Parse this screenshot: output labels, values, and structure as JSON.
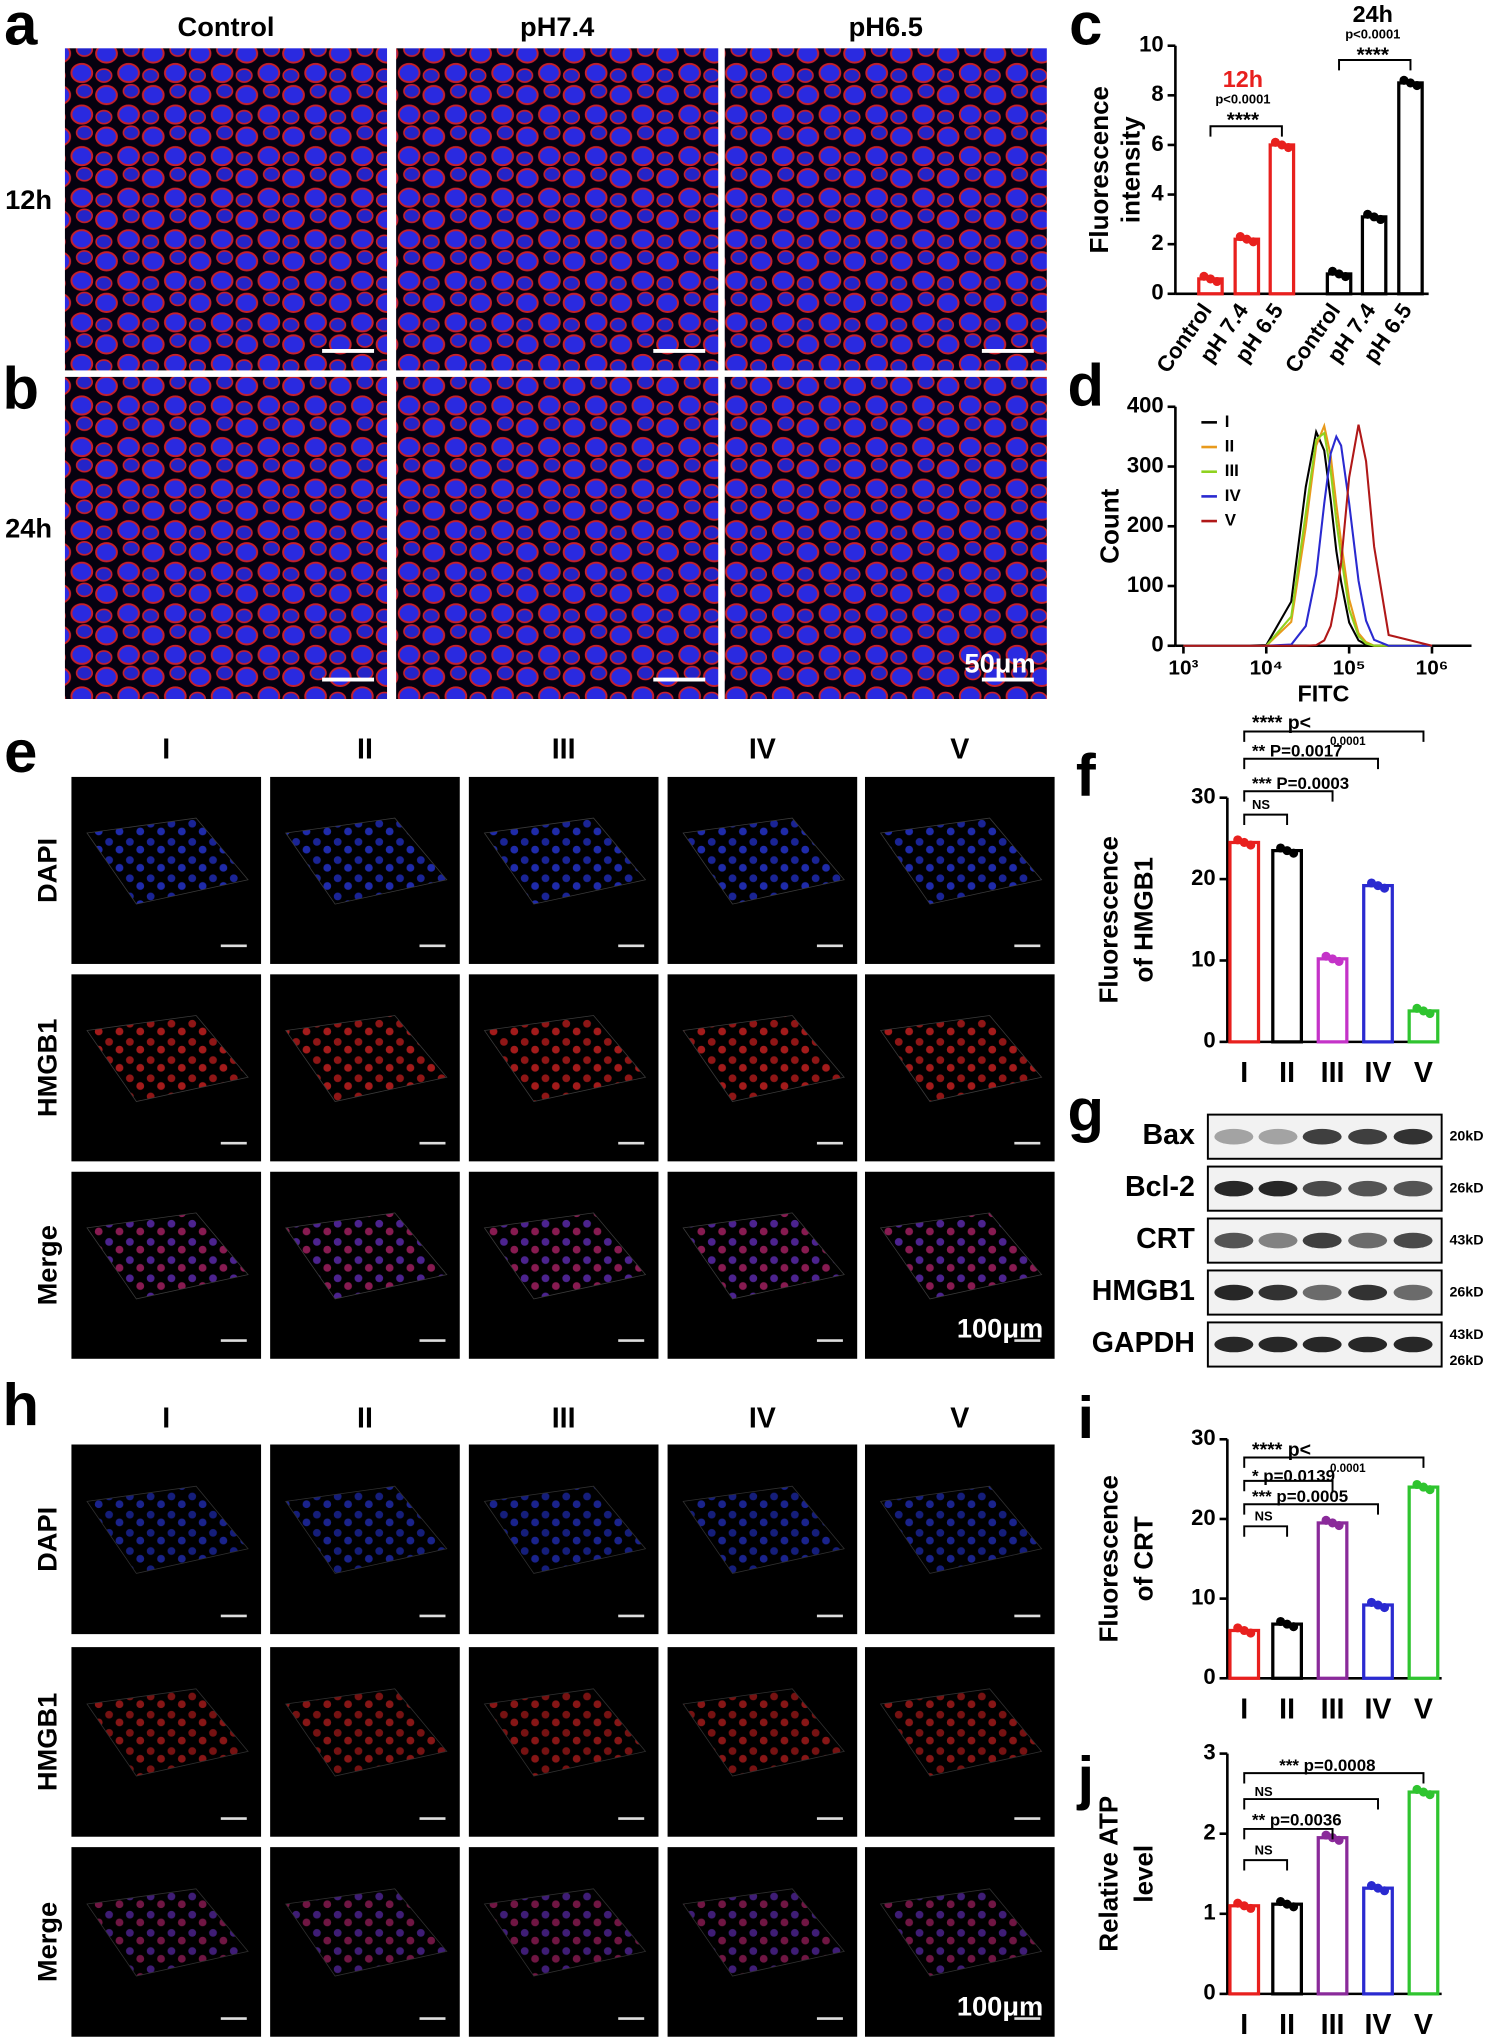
{
  "panels": {
    "letters": [
      "a",
      "b",
      "c",
      "d",
      "e",
      "f",
      "g",
      "h",
      "i",
      "j"
    ],
    "a_columns": [
      "Control",
      "pH7.4",
      "pH6.5"
    ],
    "a_rows": [
      "12h",
      "24h"
    ],
    "a_scale": "50μm",
    "e_columns": [
      "I",
      "II",
      "III",
      "IV",
      "V"
    ],
    "e_rows": [
      "DAPI",
      "HMGB1",
      "Merge"
    ],
    "e_scale": "100μm",
    "h_columns": [
      "I",
      "II",
      "III",
      "IV",
      "V"
    ],
    "h_rows": [
      "DAPI",
      "HMGB1",
      "Merge"
    ],
    "h_scale": "100μm",
    "g_proteins": [
      "Bax",
      "Bcl-2",
      "CRT",
      "HMGB1",
      "GAPDH"
    ],
    "g_sizes": [
      "20kD",
      "26kD",
      "43kD",
      "26kD",
      "43kD",
      "26kD"
    ]
  },
  "chart_data": [
    {
      "type": "bar",
      "categories": [
        "Control",
        "pH 7.4",
        "pH 6.5",
        "Control",
        "pH 7.4",
        "pH 6.5"
      ],
      "values": [
        0.6,
        2.2,
        6.0,
        0.8,
        3.1,
        8.5
      ],
      "colors": [
        "#e8201e",
        "#e8201e",
        "#e8201e",
        "#000000",
        "#000000",
        "#000000"
      ],
      "ylabel": [
        "Fluorescence",
        "intensity"
      ],
      "ylim": [
        0,
        10
      ],
      "yticks": [
        0,
        2,
        4,
        6,
        8,
        10
      ],
      "annotations": [
        {
          "text": "12h",
          "color": "#e8201e"
        },
        {
          "text": "p<0.0001",
          "color": "#000000"
        },
        {
          "text": "****",
          "color": "#000000"
        },
        {
          "text": "24h",
          "color": "#000000"
        },
        {
          "text": "p<0.0001",
          "color": "#000000"
        },
        {
          "text": "****",
          "color": "#000000"
        }
      ]
    },
    {
      "type": "line",
      "xscale": "log",
      "x": [
        1000,
        5000,
        10000,
        20000,
        30000,
        40000,
        50000,
        60000,
        70000,
        80000,
        100000,
        130000,
        160000,
        200000,
        300000,
        1000000
      ],
      "series": [
        {
          "name": "I",
          "color": "#000000",
          "values": [
            0,
            0,
            1,
            74,
            266,
            358,
            327,
            243,
            159,
            107,
            39,
            9,
            2,
            0,
            0,
            0
          ]
        },
        {
          "name": "II",
          "color": "#e89a1c",
          "values": [
            0,
            0,
            0,
            40,
            199,
            335,
            368,
            318,
            237,
            174,
            78,
            21,
            6,
            0,
            0,
            0
          ]
        },
        {
          "name": "III",
          "color": "#8fd21f",
          "values": [
            0,
            0,
            0,
            49,
            222,
            345,
            356,
            292,
            209,
            150,
            61,
            16,
            4,
            0,
            0,
            0
          ]
        },
        {
          "name": "IV",
          "color": "#2a2ad0",
          "values": [
            0,
            0,
            0,
            2,
            33,
            119,
            238,
            322,
            350,
            335,
            238,
            109,
            42,
            10,
            0,
            0
          ]
        },
        {
          "name": "V",
          "color": "#b01818",
          "values": [
            0,
            0,
            0,
            0,
            0,
            1,
            9,
            33,
            82,
            139,
            282,
            370,
            309,
            166,
            18,
            0
          ]
        }
      ],
      "xlabel": "FITC",
      "ylabel": "Count",
      "xlim": [
        800,
        3000000
      ],
      "ylim": [
        0,
        400
      ],
      "yticks": [
        0,
        100,
        200,
        300,
        400
      ],
      "xticks": [
        {
          "value": 1000,
          "label": "10³"
        },
        {
          "value": 10000,
          "label": "10⁴"
        },
        {
          "value": 100000,
          "label": "10⁵"
        },
        {
          "value": 1000000,
          "label": "10⁶"
        }
      ],
      "legend": "upper-left"
    },
    {
      "type": "bar",
      "categories": [
        "I",
        "II",
        "III",
        "IV",
        "V"
      ],
      "values": [
        24.5,
        23.5,
        10.2,
        19.2,
        3.8
      ],
      "colors": [
        "#e8201e",
        "#000000",
        "#c433c8",
        "#2a2ad0",
        "#2fc42f"
      ],
      "ylabel": [
        "Fluorescence",
        "of HMGB1"
      ],
      "ylim": [
        0,
        30
      ],
      "yticks": [
        0,
        10,
        20,
        30
      ],
      "annotations": [
        {
          "text": "NS",
          "color": "#000000"
        },
        {
          "text": "*** P=0.0003",
          "color": "#000000"
        },
        {
          "text": "** P=0.0017",
          "color": "#000000"
        },
        {
          "text": "**** p<",
          "color": "#000000"
        },
        {
          "text": "0.0001",
          "color": "#000000"
        }
      ]
    },
    {
      "type": "bar",
      "categories": [
        "I",
        "II",
        "III",
        "IV",
        "V"
      ],
      "values": [
        6.0,
        6.8,
        19.5,
        9.2,
        24.0
      ],
      "colors": [
        "#e8201e",
        "#000000",
        "#8a2a9a",
        "#2a2ad0",
        "#2fc42f"
      ],
      "ylabel": [
        "Fluorescence",
        "of CRT"
      ],
      "ylim": [
        0,
        30
      ],
      "yticks": [
        0,
        10,
        20,
        30
      ],
      "annotations": [
        {
          "text": "NS",
          "color": "#000000"
        },
        {
          "text": "*** p=0.0005",
          "color": "#000000"
        },
        {
          "text": "* p=0.0139",
          "color": "#000000"
        },
        {
          "text": "**** p<",
          "color": "#000000"
        },
        {
          "text": "0.0001",
          "color": "#000000"
        }
      ]
    },
    {
      "type": "bar",
      "categories": [
        "I",
        "II",
        "III",
        "IV",
        "V"
      ],
      "values": [
        1.1,
        1.12,
        1.95,
        1.32,
        2.52
      ],
      "colors": [
        "#e8201e",
        "#000000",
        "#8a2a9a",
        "#2a2ad0",
        "#2fc42f"
      ],
      "ylabel": [
        "Relative ATP",
        "level"
      ],
      "ylim": [
        0,
        3
      ],
      "yticks": [
        0,
        1,
        2,
        3
      ],
      "annotations": [
        {
          "text": "NS",
          "color": "#000000"
        },
        {
          "text": "** p=0.0036",
          "color": "#000000"
        },
        {
          "text": "NS",
          "color": "#000000"
        },
        {
          "text": "*** p=0.0008",
          "color": "#000000"
        }
      ]
    }
  ]
}
